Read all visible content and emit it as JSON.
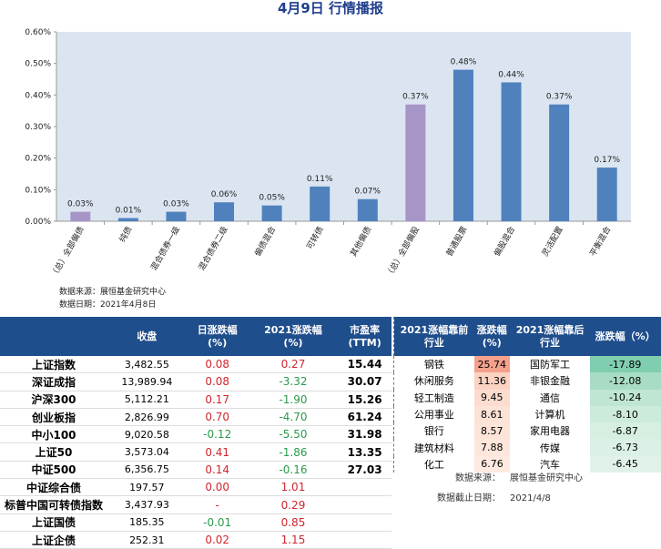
{
  "chart_data": {
    "type": "bar",
    "title": "4月9日  行情播报",
    "categories": [
      "（总）全部偏债",
      "纯债",
      "混合债券一级",
      "混合债券二级",
      "偏债混合",
      "可转债",
      "其他偏债",
      "（总）全部偏股",
      "普通股票",
      "偏股混合",
      "灵活配置",
      "平衡混合"
    ],
    "values": [
      0.03,
      0.01,
      0.03,
      0.06,
      0.05,
      0.11,
      0.07,
      0.37,
      0.48,
      0.44,
      0.37,
      0.17
    ],
    "value_labels": [
      "0.03%",
      "0.01%",
      "0.03%",
      "0.06%",
      "0.05%",
      "0.11%",
      "0.07%",
      "0.37%",
      "0.48%",
      "0.44%",
      "0.37%",
      "0.17%"
    ],
    "colors": [
      "#a795c8",
      "#4f81bd",
      "#4f81bd",
      "#4f81bd",
      "#4f81bd",
      "#4f81bd",
      "#4f81bd",
      "#a795c8",
      "#4f81bd",
      "#4f81bd",
      "#4f81bd",
      "#4f81bd"
    ],
    "ylim": [
      0,
      0.6
    ],
    "yticks": [
      {
        "value": 0,
        "label": "0.00%"
      },
      {
        "value": 0.1,
        "label": "0.10%"
      },
      {
        "value": 0.2,
        "label": "0.20%"
      },
      {
        "value": 0.3,
        "label": "0.30%"
      },
      {
        "value": 0.4,
        "label": "0.40%"
      },
      {
        "value": 0.5,
        "label": "0.50%"
      },
      {
        "value": 0.6,
        "label": "0.60%"
      }
    ],
    "notes": [
      "数据来源：展恒基金研究中心",
      "数据日期：2021年4月8日"
    ]
  },
  "left_table": {
    "headers": [
      "收盘",
      "日涨跌幅\n(%)",
      "2021涨跌幅\n(%)",
      "市盈率\n(TTM)"
    ],
    "rows": [
      [
        "上证指数",
        "3,482.55",
        "0.08",
        "0.27",
        "15.44"
      ],
      [
        "深证成指",
        "13,989.94",
        "0.08",
        "-3.32",
        "30.07"
      ],
      [
        "沪深300",
        "5,112.21",
        "0.17",
        "-1.90",
        "15.26"
      ],
      [
        "创业板指",
        "2,826.99",
        "0.70",
        "-4.70",
        "61.24"
      ],
      [
        "中小100",
        "9,020.58",
        "-0.12",
        "-5.50",
        "31.98"
      ],
      [
        "上证50",
        "3,573.04",
        "0.41",
        "-1.86",
        "13.35"
      ],
      [
        "中证500",
        "6,356.75",
        "0.14",
        "-0.16",
        "27.03"
      ],
      [
        "中证综合债",
        "197.57",
        "0.00",
        "1.01"
      ],
      [
        "标普中国可转债指数",
        "3,437.93",
        "-",
        "0.29"
      ],
      [
        "上证国债",
        "185.35",
        "-0.01",
        "0.85"
      ],
      [
        "上证企债",
        "252.31",
        "0.02",
        "1.15"
      ]
    ]
  },
  "right_table": {
    "headers": [
      "2021涨幅靠前\n行业",
      "涨跌幅\n(%)",
      "2021涨幅靠后\n行业",
      "涨跌幅（%）"
    ],
    "rows": [
      [
        "钢铁",
        "25.74",
        "国防军工",
        "-17.89"
      ],
      [
        "休闲服务",
        "11.36",
        "非银金融",
        "-12.08"
      ],
      [
        "轻工制造",
        "9.45",
        "通信",
        "-10.24"
      ],
      [
        "公用事业",
        "8.61",
        "计算机",
        "-8.10"
      ],
      [
        "银行",
        "8.57",
        "家用电器",
        "-6.87"
      ],
      [
        "建筑材料",
        "7.88",
        "传媒",
        "-6.73"
      ],
      [
        "化工",
        "6.76",
        "汽车",
        "-6.45"
      ]
    ],
    "notes": [
      [
        "数据来源：",
        "展恒基金研究中心"
      ],
      [
        "数据截止日期：",
        "2021/4/8"
      ]
    ]
  }
}
